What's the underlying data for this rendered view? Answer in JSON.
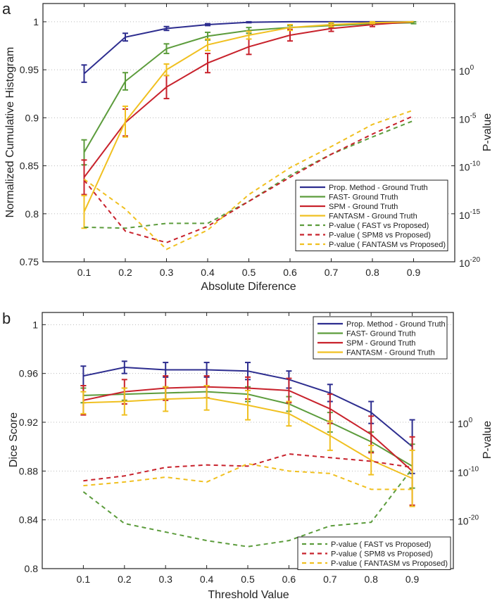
{
  "colors": {
    "prop": "#2d2d8f",
    "fast": "#5c9c3c",
    "spm": "#c8222c",
    "fantasm": "#f0c020"
  },
  "chart_data": [
    {
      "panel_label": "a",
      "type": "line",
      "xlabel": "Absolute Diference",
      "ylabel": "Normalized Cumulative Histogram",
      "y2label": "P-value",
      "x": [
        0.1,
        0.2,
        0.3,
        0.4,
        0.5,
        0.6,
        0.7,
        0.8,
        0.9
      ],
      "xlim": [
        0,
        1
      ],
      "ylim": [
        0.75,
        1.019
      ],
      "y2lim_log10": [
        -20,
        6.9
      ],
      "xticks": [
        "0.1",
        "0.2",
        "0.3",
        "0.4",
        "0.5",
        "0.6",
        "0.7",
        "0.8",
        "0.9"
      ],
      "yticks": [
        0.75,
        0.8,
        0.85,
        0.9,
        0.95,
        1
      ],
      "ytick_labels": [
        "0.75",
        "0.8",
        "0.85",
        "0.9",
        "0.95",
        "1"
      ],
      "y2ticks_log10": [
        -20,
        -15,
        -10,
        -5,
        0
      ],
      "y2tick_labels": [
        "-20",
        "-15",
        "-10",
        "-5",
        "0"
      ],
      "y2tick_base": "10",
      "legend_placement": "bottom-right",
      "grid": true,
      "series": [
        {
          "name": "Prop. Method - Ground Truth",
          "key": "prop",
          "style": "solid",
          "values": [
            0.946,
            0.984,
            0.993,
            0.997,
            0.9995,
            1,
            1,
            1,
            1
          ],
          "errors": [
            0.009,
            0.004,
            0.002,
            0.001,
            0.0005,
            0,
            0,
            0,
            0
          ]
        },
        {
          "name": "FAST- Ground Truth",
          "key": "fast",
          "style": "solid",
          "values": [
            0.864,
            0.938,
            0.972,
            0.985,
            0.991,
            0.994,
            0.996,
            0.998,
            0.999
          ],
          "errors": [
            0.013,
            0.009,
            0.005,
            0.004,
            0.003,
            0.002,
            0.002,
            0.001,
            0.001
          ]
        },
        {
          "name": "SPM - Ground Truth",
          "key": "spm",
          "style": "solid",
          "values": [
            0.838,
            0.895,
            0.932,
            0.957,
            0.974,
            0.986,
            0.993,
            0.997,
            1.0
          ],
          "errors": [
            0.018,
            0.014,
            0.012,
            0.01,
            0.008,
            0.006,
            0.003,
            0.002,
            0
          ]
        },
        {
          "name": "FANTASM - Ground Truth",
          "key": "fantasm",
          "style": "solid",
          "values": [
            0.802,
            0.896,
            0.95,
            0.976,
            0.986,
            0.994,
            0.997,
            0.999,
            1.0
          ],
          "errors": [
            0.017,
            0.016,
            0.006,
            0.006,
            0.004,
            0.003,
            0.002,
            0.001,
            0
          ]
        },
        {
          "name": "P-value ( FAST vs Proposed)",
          "key": "fast",
          "style": "dashed",
          "axis": "right",
          "log10_values": [
            -16.4,
            -16.5,
            -16,
            -16,
            -13.7,
            -11,
            -8.8,
            -7,
            -5.3
          ]
        },
        {
          "name": "P-value ( SPM8 vs Proposed)",
          "key": "spm",
          "style": "dashed",
          "axis": "right",
          "log10_values": [
            -11.5,
            -16.8,
            -18,
            -16.3,
            -13.7,
            -11.2,
            -8.8,
            -6.7,
            -4.8
          ]
        },
        {
          "name": "P-value ( FANTASM vs Proposed)",
          "key": "fantasm",
          "style": "dashed",
          "axis": "right",
          "log10_values": [
            -11.4,
            -14.5,
            -18.7,
            -16.7,
            -13,
            -10.2,
            -8,
            -5.7,
            -4.2
          ]
        }
      ]
    },
    {
      "panel_label": "b",
      "type": "line",
      "xlabel": "Threshold Value",
      "ylabel": "Dice Score",
      "y2label": "P-value",
      "x": [
        0.1,
        0.2,
        0.3,
        0.4,
        0.5,
        0.6,
        0.7,
        0.8,
        0.9
      ],
      "xlim": [
        0,
        1
      ],
      "ylim": [
        0.8,
        1.01
      ],
      "y2lim_log10": [
        -30,
        22.5
      ],
      "xticks": [
        "0.1",
        "0.2",
        "0.3",
        "0.4",
        "0.5",
        "0.6",
        "0.7",
        "0.8",
        "0.9"
      ],
      "yticks": [
        0.8,
        0.84,
        0.88,
        0.92,
        0.96,
        1
      ],
      "ytick_labels": [
        "0.8",
        "0.84",
        "0.88",
        "0.92",
        "0.96",
        "1"
      ],
      "y2ticks_log10": [
        -20,
        -10,
        0
      ],
      "y2tick_labels": [
        "-20",
        "-10",
        "0"
      ],
      "y2tick_base": "10",
      "legend_placement": "top-right / bottom-right",
      "grid": true,
      "series": [
        {
          "name": "Prop. Method - Ground Truth",
          "key": "prop",
          "style": "solid",
          "values": [
            0.958,
            0.965,
            0.963,
            0.963,
            0.962,
            0.955,
            0.944,
            0.928,
            0.9
          ],
          "errors": [
            0.008,
            0.005,
            0.006,
            0.006,
            0.007,
            0.007,
            0.007,
            0.009,
            0.022
          ]
        },
        {
          "name": "FAST- Ground Truth",
          "key": "fast",
          "style": "solid",
          "values": [
            0.942,
            0.943,
            0.944,
            0.945,
            0.943,
            0.935,
            0.92,
            0.904,
            0.884
          ],
          "errors": [
            0.006,
            0.005,
            0.005,
            0.005,
            0.006,
            0.006,
            0.008,
            0.008,
            0.018
          ]
        },
        {
          "name": "SPM - Ground Truth",
          "key": "spm",
          "style": "solid",
          "values": [
            0.938,
            0.945,
            0.948,
            0.949,
            0.948,
            0.946,
            0.931,
            0.91,
            0.88
          ],
          "errors": [
            0.012,
            0.01,
            0.01,
            0.009,
            0.009,
            0.01,
            0.012,
            0.015,
            0.028
          ]
        },
        {
          "name": "FANTASM - Ground Truth",
          "key": "fantasm",
          "style": "solid",
          "values": [
            0.936,
            0.937,
            0.939,
            0.94,
            0.934,
            0.927,
            0.909,
            0.889,
            0.874
          ],
          "errors": [
            0.009,
            0.011,
            0.01,
            0.01,
            0.012,
            0.01,
            0.012,
            0.012,
            0.023
          ]
        },
        {
          "name": "P-value ( FAST vs Proposed)",
          "key": "fast",
          "style": "dashed",
          "axis": "right",
          "log10_values": [
            -14.25,
            -20.75,
            -22.5,
            -24.25,
            -25.5,
            -24.25,
            -21.25,
            -20.5,
            -9.5
          ]
        },
        {
          "name": "P-value ( SPM8 vs Proposed)",
          "key": "spm",
          "style": "dashed",
          "axis": "right",
          "log10_values": [
            -12,
            -11,
            -9.25,
            -8.75,
            -9,
            -6.5,
            -7.25,
            -8,
            -9.25
          ]
        },
        {
          "name": "P-value ( FANTASM vs Proposed)",
          "key": "fantasm",
          "style": "dashed",
          "axis": "right",
          "log10_values": [
            -13,
            -12.25,
            -11.25,
            -12.25,
            -8.5,
            -10,
            -10.5,
            -13.75,
            -13.75
          ]
        }
      ]
    }
  ]
}
